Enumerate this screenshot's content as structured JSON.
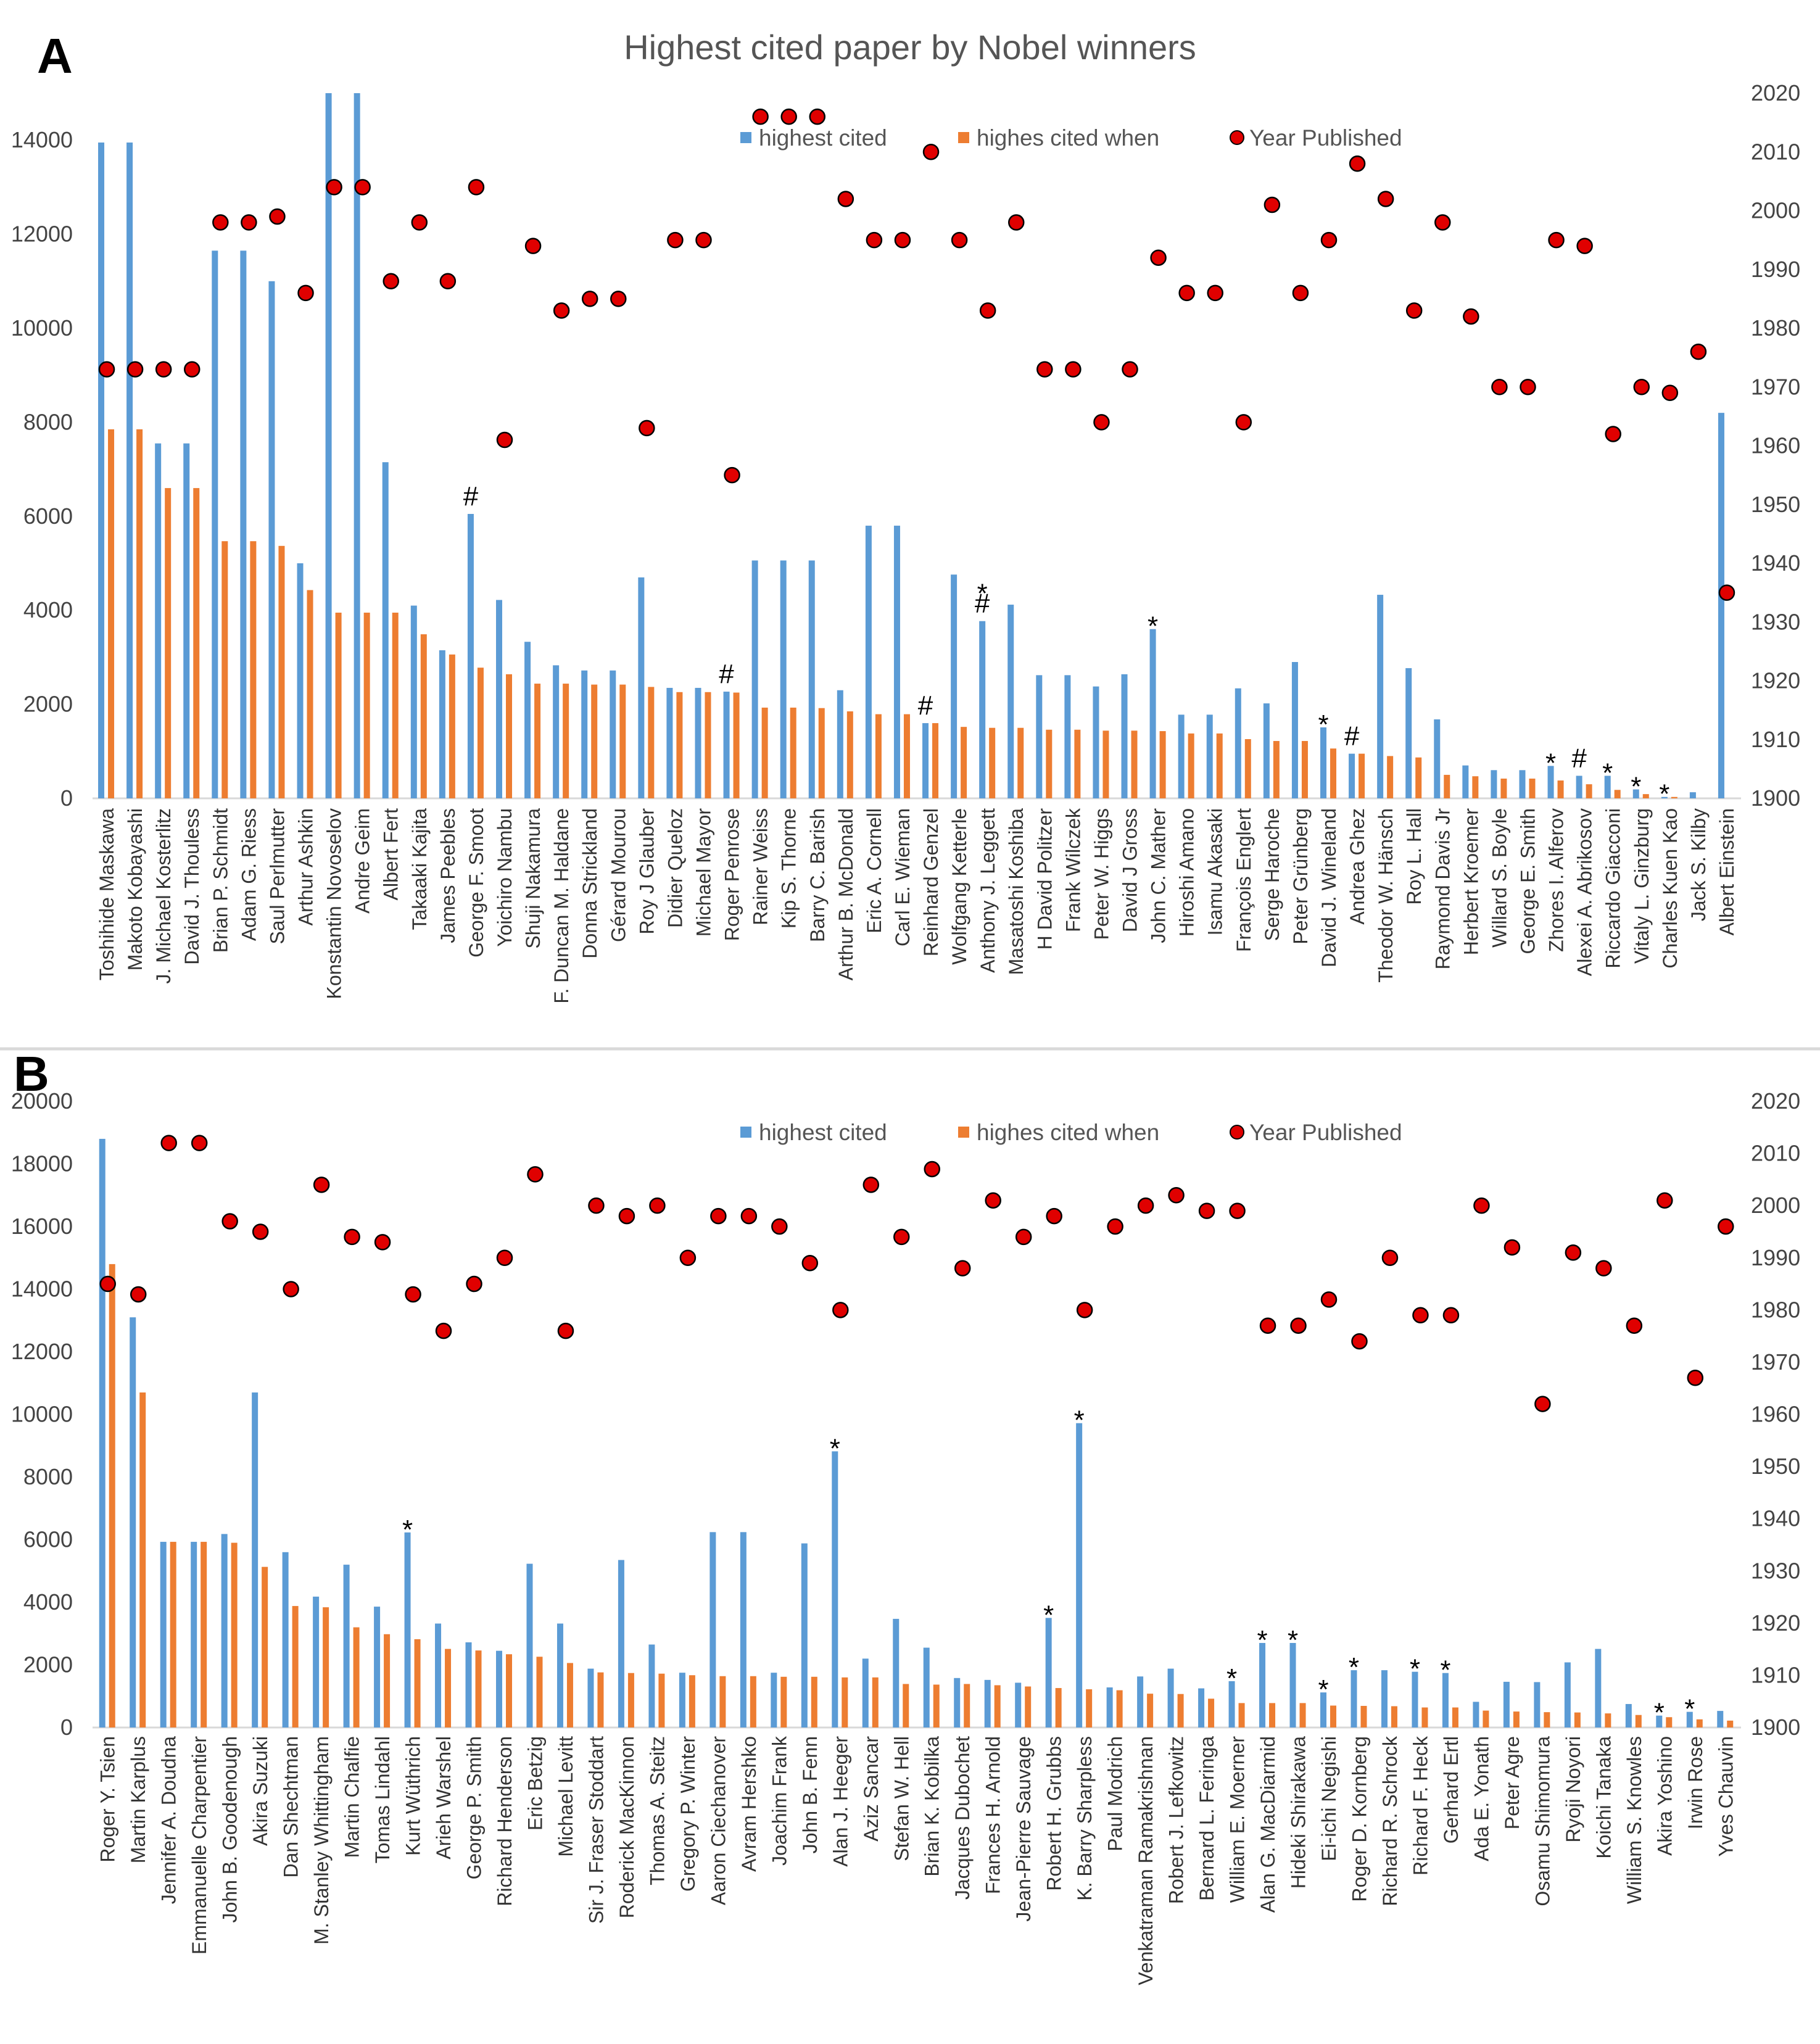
{
  "colors": {
    "highest_cited": "#5b9bd5",
    "when": "#ed7d31",
    "year_fill": "#e00000",
    "year_stroke": "#000000",
    "gridline": "#d9d9d9",
    "separator": "#d9d9d9"
  },
  "chart_data": [
    {
      "panel": "A",
      "type": "bar",
      "title": "Highest cited paper by Nobel winners",
      "legend_position": "top",
      "grid": false,
      "ylim": [
        0,
        15000
      ],
      "y_ticks": [
        "0",
        "2000",
        "4000",
        "6000",
        "8000",
        "10000",
        "12000",
        "14000"
      ],
      "y2lim": [
        1900,
        2020
      ],
      "y2_ticks": [
        "1900",
        "1910",
        "1920",
        "1930",
        "1940",
        "1950",
        "1960",
        "1970",
        "1980",
        "1990",
        "2000",
        "2010",
        "2020"
      ],
      "series": [
        {
          "name": "highest cited",
          "axis": "left",
          "values": [
            13950,
            13950,
            7550,
            7550,
            11650,
            11650,
            11000,
            5000,
            15000,
            15000,
            7150,
            4100,
            3150,
            6050,
            4220,
            3330,
            2830,
            2720,
            2720,
            4700,
            2350,
            2350,
            2270,
            5060,
            5060,
            5060,
            2300,
            5800,
            5800,
            1600,
            4760,
            3770,
            4120,
            2620,
            2620,
            2380,
            2640,
            3600,
            1780,
            1780,
            2340,
            2020,
            2900,
            1510,
            950,
            4330,
            2770,
            1680,
            700,
            600,
            600,
            690,
            480,
            480,
            190,
            30,
            130,
            8200
          ]
        },
        {
          "name": "highes cited when",
          "axis": "left",
          "values": [
            7850,
            7850,
            6600,
            6600,
            5470,
            5470,
            5370,
            4430,
            3950,
            3950,
            3950,
            3490,
            3060,
            2780,
            2640,
            2440,
            2440,
            2420,
            2420,
            2370,
            2260,
            2260,
            2250,
            1930,
            1930,
            1920,
            1850,
            1790,
            1790,
            1600,
            1520,
            1500,
            1500,
            1460,
            1460,
            1440,
            1440,
            1430,
            1380,
            1380,
            1260,
            1220,
            1220,
            1060,
            950,
            900,
            870,
            500,
            470,
            420,
            420,
            380,
            300,
            180,
            90,
            30,
            0,
            0
          ]
        },
        {
          "name": "Year Published",
          "axis": "right",
          "values": [
            1973,
            1973,
            1973,
            1973,
            1998,
            1998,
            1999,
            1986,
            2004,
            2004,
            1988,
            1998,
            1988,
            2004,
            1961,
            1994,
            1983,
            1985,
            1985,
            1963,
            1995,
            1995,
            1955,
            2016,
            2016,
            2016,
            2002,
            1995,
            1995,
            2010,
            1995,
            1983,
            1998,
            1973,
            1973,
            1964,
            1973,
            1992,
            1986,
            1986,
            1964,
            2001,
            1986,
            1995,
            2008,
            2002,
            1983,
            1998,
            1982,
            1970,
            1970,
            1995,
            1994,
            1962,
            1970,
            1969,
            1976,
            1935
          ]
        }
      ],
      "categories": [
        "Toshihide Maskawa",
        "Makoto Kobayashi",
        "J. Michael Kosterlitz",
        "David J. Thouless",
        "Brian P. Schmidt",
        "Adam G. Riess",
        "Saul Perlmutter",
        "Arthur Ashkin",
        "Konstantin Novoselov",
        "Andre Geim",
        "Albert Fert",
        "Takaaki Kajita",
        "James Peebles",
        "George F. Smoot",
        "Yoichiro Nambu",
        "Shuji Nakamura",
        "F. Duncan M. Haldane",
        "Donna Strickland",
        "Gérard Mourou",
        "Roy J Glauber",
        "Didier Queloz",
        "Michael Mayor",
        "Roger Penrose",
        "Rainer Weiss",
        "Kip S. Thorne",
        "Barry C. Barish",
        "Arthur B. McDonald",
        "Eric A. Cornell",
        "Carl E. Wieman",
        "Reinhard Genzel",
        "Wolfgang Ketterle",
        "Anthony J. Leggett",
        "Masatoshi Koshiba",
        "H David Politzer",
        "Frank Wilczek",
        "Peter W. Higgs",
        "David J Gross",
        "John C. Mather",
        "Hiroshi Amano",
        "Isamu Akasaki",
        "François Englert",
        "Serge Haroche",
        "Peter Grünberg",
        "David J. Wineland",
        "Andrea Ghez",
        "Theodor W. Hänsch",
        "Roy L. Hall",
        "Raymond Davis Jr",
        "Herbert Kroemer",
        "Willard S. Boyle",
        "George E. Smith",
        "Zhores I. Alferov",
        "Alexei A. Abrikosov",
        "Riccardo Giacconi",
        "Vitaly L. Ginzburg",
        "Charles Kuen Kao",
        "Jack S. Kilby",
        "Albert Einstein"
      ],
      "annotations": [
        {
          "category_index": 13,
          "text": "#"
        },
        {
          "category_index": 22,
          "text": "#"
        },
        {
          "category_index": 29,
          "text": "#"
        },
        {
          "category_index": 31,
          "text": "#"
        },
        {
          "category_index": 31,
          "text": "*"
        },
        {
          "category_index": 37,
          "text": "*"
        },
        {
          "category_index": 43,
          "text": "*"
        },
        {
          "category_index": 44,
          "text": "#"
        },
        {
          "category_index": 51,
          "text": "*"
        },
        {
          "category_index": 52,
          "text": "#"
        },
        {
          "category_index": 53,
          "text": "*"
        },
        {
          "category_index": 54,
          "text": "*"
        },
        {
          "category_index": 55,
          "text": "*"
        }
      ]
    },
    {
      "panel": "B",
      "type": "bar",
      "title": "",
      "legend_position": "top",
      "grid": false,
      "ylim": [
        0,
        20000
      ],
      "y_ticks": [
        "0",
        "2000",
        "4000",
        "6000",
        "8000",
        "10000",
        "12000",
        "14000",
        "16000",
        "18000",
        "20000"
      ],
      "y2lim": [
        1900,
        2020
      ],
      "y2_ticks": [
        "1900",
        "1910",
        "1920",
        "1930",
        "1940",
        "1950",
        "1960",
        "1970",
        "1980",
        "1990",
        "2000",
        "2010",
        "2020"
      ],
      "series": [
        {
          "name": "highest cited",
          "axis": "left",
          "values": [
            18800,
            13100,
            5930,
            5930,
            6180,
            10700,
            5600,
            4180,
            5200,
            3860,
            6230,
            3320,
            2720,
            2450,
            5230,
            3320,
            1880,
            5350,
            2650,
            1750,
            6240,
            6240,
            1750,
            5880,
            8820,
            2200,
            3470,
            2550,
            1580,
            1520,
            1430,
            3500,
            9720,
            1280,
            1630,
            1880,
            1250,
            1480,
            2700,
            2700,
            1120,
            1830,
            1830,
            1780,
            1740,
            820,
            1460,
            1450,
            2080,
            2510,
            750,
            380,
            500,
            530
          ]
        },
        {
          "name": "highes cited when",
          "axis": "left",
          "values": [
            14800,
            10700,
            5930,
            5930,
            5900,
            5130,
            3880,
            3840,
            3200,
            2980,
            2820,
            2510,
            2460,
            2340,
            2260,
            2060,
            1760,
            1740,
            1720,
            1670,
            1640,
            1640,
            1620,
            1620,
            1600,
            1600,
            1390,
            1370,
            1390,
            1350,
            1310,
            1260,
            1220,
            1190,
            1080,
            1070,
            920,
            780,
            780,
            780,
            700,
            690,
            680,
            640,
            640,
            540,
            510,
            490,
            480,
            450,
            400,
            330,
            260,
            220
          ]
        },
        {
          "name": "Year Published",
          "axis": "right",
          "values": [
            1985,
            1983,
            2012,
            2012,
            1997,
            1995,
            1984,
            2004,
            1994,
            1993,
            1983,
            1976,
            1985,
            1990,
            2006,
            1976,
            2000,
            1998,
            2000,
            1990,
            1998,
            1998,
            1996,
            1989,
            1980,
            2004,
            1994,
            2007,
            1988,
            2001,
            1994,
            1998,
            1980,
            1996,
            2000,
            2002,
            1999,
            1999,
            1977,
            1977,
            1982,
            1974,
            1990,
            1979,
            1979,
            2000,
            1992,
            1962,
            1991,
            1988,
            1977,
            2001,
            1967,
            1996
          ]
        }
      ],
      "categories": [
        "Roger Y. Tsien",
        "Martin Karplus",
        "Jennifer A. Doudna",
        "Emmanuelle Charpentier",
        "John B. Goodenough",
        "Akira Suzuki",
        "Dan Shechtman",
        "M. Stanley Whittingham",
        "Martin Chalfie",
        "Tomas Lindahl",
        "Kurt Wüthrich",
        "Arieh Warshel",
        "George P. Smith",
        "Richard Henderson",
        "Eric Betzig",
        "Michael Levitt",
        "Sir J. Fraser Stoddart",
        "Roderick MacKinnon",
        "Thomas A. Steitz",
        "Gregory P. Winter",
        "Aaron Ciechanover",
        "Avram Hershko",
        "Joachim Frank",
        "John B. Fenn",
        "Alan J. Heeger",
        "Aziz Sancar",
        "Stefan W. Hell",
        "Brian K. Kobilka",
        "Jacques Dubochet",
        "Frances H. Arnold",
        "Jean-Pierre Sauvage",
        "Robert H. Grubbs",
        "K. Barry Sharpless",
        "Paul Modrich",
        "Venkatraman Ramakrishnan",
        "Robert J. Lefkowitz",
        "Bernard L. Feringa",
        "William E. Moerner",
        "Alan G. MacDiarmid",
        "Hideki Shirakawa",
        "Ei-ichi Negishi",
        "Roger D. Kornberg",
        "Richard R. Schrock",
        "Richard F. Heck",
        "Gerhard Ertl",
        "Ada E. Yonath",
        "Peter Agre",
        "Osamu Shimomura",
        "Ryoji Noyori",
        "Koichi Tanaka",
        "William S. Knowles",
        "Akira Yoshino",
        "Irwin Rose",
        "Yves Chauvin"
      ],
      "annotations": [
        {
          "category_index": 10,
          "text": "*"
        },
        {
          "category_index": 24,
          "text": "*"
        },
        {
          "category_index": 31,
          "text": "*"
        },
        {
          "category_index": 32,
          "text": "*"
        },
        {
          "category_index": 37,
          "text": "*"
        },
        {
          "category_index": 38,
          "text": "*"
        },
        {
          "category_index": 39,
          "text": "*"
        },
        {
          "category_index": 40,
          "text": "*"
        },
        {
          "category_index": 41,
          "text": "*"
        },
        {
          "category_index": 43,
          "text": "*"
        },
        {
          "category_index": 44,
          "text": "*"
        },
        {
          "category_index": 51,
          "text": "*"
        },
        {
          "category_index": 52,
          "text": "*"
        }
      ]
    }
  ]
}
